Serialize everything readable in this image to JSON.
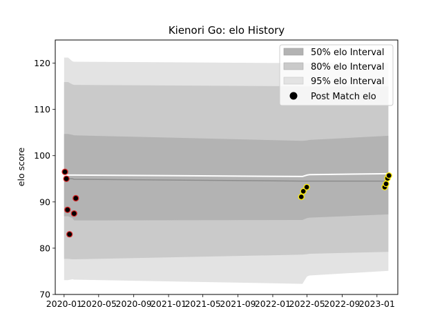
{
  "chart_data": {
    "type": "line",
    "title": "Kienori Go: elo History",
    "xlabel": "",
    "ylabel": "elo score",
    "ylim": [
      70,
      125
    ],
    "xlim": [
      "2019-12-01",
      "2023-03-15"
    ],
    "x_ticks": [
      "2020-01",
      "2020-05",
      "2020-09",
      "2021-01",
      "2021-05",
      "2021-09",
      "2022-01",
      "2022-05",
      "2022-09",
      "2023-01"
    ],
    "y_ticks": [
      70,
      80,
      90,
      100,
      110,
      120
    ],
    "grid": false,
    "legend_position": "top-right",
    "legend": [
      {
        "label": "50% elo Interval",
        "swatch": "band",
        "color": "#b3b3b3"
      },
      {
        "label": "80% elo Interval",
        "swatch": "band",
        "color": "#cacaca"
      },
      {
        "label": "95% elo Interval",
        "swatch": "band",
        "color": "#e3e3e3"
      },
      {
        "label": "Post Match elo",
        "swatch": "marker",
        "color": "#000000"
      }
    ],
    "colors": {
      "band50": "#b3b3b3",
      "band80": "#cacaca",
      "band95": "#e3e3e3",
      "mean_line": "#ffffff",
      "median_line": "#8c8c8c",
      "marker_fill": "#000000",
      "marker_edge_early": "#d62728",
      "marker_edge_late": "#ffee00"
    },
    "bands": {
      "x": [
        "2020-01-01",
        "2020-01-15",
        "2020-01-30",
        "2020-02-05",
        "2022-04-15",
        "2022-05-01",
        "2022-05-10",
        "2023-02-10"
      ],
      "band95_upper": [
        121.2,
        121.2,
        120.4,
        120.3,
        120.0,
        120.0,
        120.0,
        120.0
      ],
      "band95_lower": [
        73.1,
        73.1,
        73.3,
        73.2,
        72.3,
        73.9,
        74.1,
        75.1
      ],
      "band80_upper": [
        115.9,
        115.9,
        115.4,
        115.3,
        115.0,
        115.0,
        115.0,
        115.0
      ],
      "band80_lower": [
        77.7,
        77.7,
        77.6,
        77.6,
        78.6,
        78.7,
        78.8,
        79.2
      ],
      "band50_upper": [
        104.7,
        104.7,
        104.5,
        104.4,
        103.2,
        103.3,
        103.4,
        104.3
      ],
      "band50_lower": [
        86.9,
        86.9,
        86.5,
        86.0,
        86.1,
        86.5,
        86.6,
        87.3
      ],
      "mean": [
        95.8,
        95.8,
        95.8,
        95.8,
        95.5,
        95.8,
        95.9,
        96.1
      ],
      "median": [
        95.0,
        95.0,
        95.0,
        94.9,
        94.5,
        94.5,
        94.5,
        94.5
      ]
    },
    "series": [
      {
        "name": "Post Match elo",
        "x": [
          "2020-01-04",
          "2020-01-09",
          "2020-01-13",
          "2020-01-20",
          "2020-02-05",
          "2020-02-11",
          "2022-04-11",
          "2022-04-18",
          "2022-04-30",
          "2023-01-28",
          "2023-02-02",
          "2023-02-07",
          "2023-02-12"
        ],
        "values": [
          96.5,
          95.0,
          88.3,
          83.0,
          87.5,
          90.8,
          91.1,
          92.3,
          93.2,
          93.2,
          93.9,
          95.1,
          95.7
        ],
        "edge": [
          "early",
          "early",
          "early",
          "early",
          "early",
          "early",
          "late",
          "late",
          "late",
          "late",
          "late",
          "late",
          "late"
        ]
      }
    ]
  }
}
